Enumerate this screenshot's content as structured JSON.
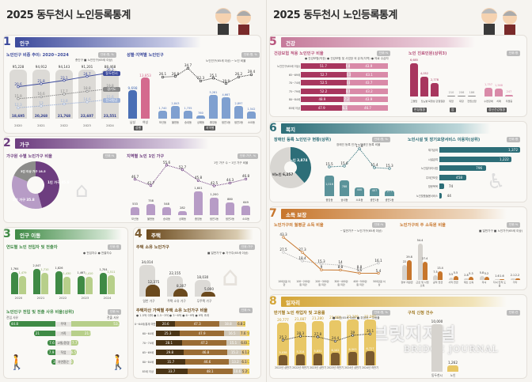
{
  "title": "2025 동두천시 노인등록통계",
  "sections": {
    "s1": {
      "num": "1",
      "label": "인구",
      "color": "#3c4a9c"
    },
    "s2": {
      "num": "2",
      "label": "가구",
      "color": "#6d3d7f"
    },
    "s3": {
      "num": "3",
      "label": "인구 이동",
      "color": "#3f8a45"
    },
    "s4": {
      "num": "4",
      "label": "주택",
      "color": "#7a5a2e"
    },
    "s5": {
      "num": "5",
      "label": "건강",
      "color": "#b8567e"
    },
    "s6": {
      "num": "6",
      "label": "복지",
      "color": "#2d6e78"
    },
    "s7": {
      "num": "7",
      "label": "소득 보장",
      "color": "#c7762c"
    },
    "s8": {
      "num": "8",
      "label": "일자리",
      "color": "#d4a537"
    }
  },
  "watermark": {
    "ko": "브릿지저널",
    "en": "BRIDGE JOURNAL"
  },
  "chart_data": [
    {
      "id": "pop_trend",
      "type": "bar",
      "title": "노인인구 비중 추이: 2020~2024",
      "badge": "단위:명, %",
      "categories": [
        "2020",
        "2021",
        "2022",
        "2023",
        "2024"
      ],
      "series": [
        {
          "name": "총인구",
          "values": [
            95228,
            94912,
            94143,
            91201,
            88468
          ]
        },
        {
          "name": "노인인구(65세 이상)",
          "values": [
            18695,
            20268,
            21768,
            22607,
            23551
          ]
        }
      ],
      "lines": [
        {
          "name": "동두천시",
          "values": [
            20.6,
            21.8,
            23.1,
            24.7,
            26.2
          ]
        },
        {
          "name": "경기도",
          "values": [
            15.9,
            16.6,
            17.7,
            18.8,
            19.8
          ]
        },
        {
          "name": "전국평균",
          "values": [
            12.3,
            13.0,
            13.8,
            14.6,
            15.6
          ]
        }
      ],
      "legend": [
        "총인구",
        "노인인구(65세 이상)"
      ],
      "tags": [
        "동두천시",
        "경기도",
        "전국평균"
      ]
    },
    {
      "id": "pop_gender_region",
      "type": "bar",
      "title": "성별·지역별 노인인구",
      "badge": "단위:명, %",
      "gender": {
        "categories": [
          "남성",
          "여성"
        ],
        "values": [
          9698,
          13853
        ],
        "tag": "성별"
      },
      "region": {
        "categories": [
          "보산동",
          "불현동",
          "송내동",
          "상패동",
          "중앙동",
          "생연1동",
          "생연2동",
          "소요동"
        ],
        "values": [
          1740,
          2843,
          1735,
          760,
          5281,
          4667,
          2897,
          1542
        ],
        "line": [
          26.1,
          26.8,
          34.7,
          22.3,
          25.1,
          19.9,
          26.2,
          28.4
        ],
        "tag": "지역별"
      },
      "legend": [
        "노인인구(65세 이상)",
        "노인 비율"
      ]
    },
    {
      "id": "household_pie",
      "type": "pie",
      "title": "가구원 수별 노인가구 비율",
      "badge": "단위:%",
      "categories": [
        "1인 가구",
        "2인 가구",
        "3인 이상 가구"
      ],
      "values": [
        45.8,
        35.8,
        18.5
      ]
    },
    {
      "id": "single_household",
      "type": "bar",
      "title": "지역별 노인 1인 가구",
      "badge": "단위:가구, %",
      "categories": [
        "보산동",
        "불현동",
        "송내동",
        "상패동",
        "중앙동",
        "생연1동",
        "생연2동",
        "소요동"
      ],
      "values": [
        533,
        758,
        548,
        282,
        1601,
        1200,
        880,
        649
      ],
      "line": [
        46.7,
        42.7,
        55.6,
        52.7,
        45.8,
        42.5,
        44.3,
        46.8
      ],
      "legend": [
        "1인 가구 수",
        "1인 가구 비율"
      ]
    },
    {
      "id": "migration",
      "type": "bar",
      "title": "연도별 노인 전입자 및 전출자",
      "badge": "단위:명",
      "categories": [
        "2020",
        "2021",
        "2022",
        "2023",
        "2024"
      ],
      "series": [
        {
          "name": "전입자수",
          "values": [
            1764,
            2047,
            1826,
            1467,
            1704
          ]
        },
        {
          "name": "전출자수",
          "values": [
            1479,
            1710,
            1430,
            1410,
            1511
          ]
        }
      ]
    },
    {
      "id": "migration_reason",
      "type": "bar",
      "title": "노인인구 전입 및 전출 사유 비율(상위)",
      "badge": "단위:%",
      "left_label": "전입 사유",
      "right_label": "전출 사유",
      "categories": [
        "주택",
        "가족",
        "교통/환경",
        "직업",
        "자연환경"
      ],
      "in_values": [
        44.8,
        21.0,
        7.6,
        7.9,
        3.8
      ],
      "out_values": [
        53.3,
        21.6,
        7.7,
        6.5,
        2.6
      ]
    },
    {
      "id": "house_owner",
      "type": "bar",
      "title": "주택 소유 노인가구",
      "badge": "단위:가구",
      "categories": [
        "일반 가구",
        "주택 소유 가구",
        "무주택 가구"
      ],
      "series": [
        {
          "name": "일반가구",
          "values": [
            34014,
            22155,
            18030
          ]
        },
        {
          "name": "가구주(65세 이상)",
          "values": [
            12375,
            8307,
            5000
          ]
        }
      ]
    },
    {
      "id": "house_value",
      "type": "bar",
      "title": "주택자산 가액별 주택 소유 노인가구 비율",
      "badge": "단위:%",
      "legend": [
        "1.5억 이하",
        "1.5~3억",
        "3~6억",
        "6~9억",
        "9억 초과"
      ],
      "categories": [
        "0~64세(통계 미만)",
        "60~64세",
        "70~74세",
        "65~69세",
        "80~84세",
        "85세 이상"
      ],
      "rows": [
        [
          20.6,
          47.3,
          18.8,
          6.8,
          2.0
        ],
        [
          25.3,
          47.9,
          16.5,
          7.6,
          2.8
        ],
        [
          28.1,
          47.2,
          15.1,
          6.6,
          2.7
        ],
        [
          29.8,
          46.8,
          15.2,
          6.1,
          2.0
        ],
        [
          31.7,
          46.6,
          13.2,
          6.1,
          2.3
        ],
        [
          33.7,
          48.1,
          10.6,
          5.2,
          2.2
        ]
      ]
    },
    {
      "id": "health_insurance",
      "type": "bar",
      "title": "건강보험 적용 노인인구 비율",
      "badge": "단위:%",
      "legend": [
        "건강보험(직장)",
        "건강보험 및 사업장 외 유지(지역)",
        "의료 수급자"
      ],
      "categories": [
        "노인인구(65세 이상)",
        "65~69세",
        "70~74세",
        "75~79세",
        "80~84세",
        "85세 이상"
      ],
      "rows": [
        [
          51.7,
          4.4,
          43.9
        ],
        [
          52.7,
          4.3,
          43.1
        ],
        [
          52.5,
          3.8,
          43.7
        ],
        [
          52.2,
          4.6,
          43.2
        ],
        [
          48.9,
          7.2,
          43.9
        ],
        [
          47.9,
          6.1,
          46.7
        ]
      ]
    },
    {
      "id": "disease",
      "type": "bar",
      "title": "노인 진료인원(상위3)",
      "badge": "단위:명",
      "groups": [
        {
          "tag": "만성질환",
          "categories": [
            "고혈압",
            "당뇨병",
            "퇴행성 관절질환"
          ],
          "values": [
            6685,
            4052,
            2778
          ]
        },
        {
          "tag": "암",
          "categories": [
            "위암",
            "대장",
            "전립선암"
          ],
          "values": [
            210,
            206,
            186
          ]
        },
        {
          "tag": "정신건강질환",
          "categories": [
            "수면장애",
            "치매",
            "우울증"
          ],
          "values": [
            1757,
            1568,
            247
          ]
        }
      ]
    },
    {
      "id": "disabled",
      "type": "pie",
      "title": "장애인 등록 노인인구 현황(상위)",
      "badge": "단위:명, %",
      "categories": [
        "노인",
        "비노인"
      ],
      "values": [
        3874,
        6257
      ],
      "legend": [
        "장애인 등록 인구",
        "장애인 등록 비율"
      ],
      "region": {
        "categories": [
          "중앙동",
          "송내동",
          "소요동",
          "생연1동",
          "생연2동"
        ],
        "values": [
          1016,
          788,
          440,
          407,
          277
        ],
        "line": [
          15.5,
          15.6,
          17.8,
          15.4,
          15.3
        ]
      }
    },
    {
      "id": "welfare_service",
      "type": "bar",
      "title": "노인시설 및 장기요양서비스 이용자(상위)",
      "badge": "단위:명",
      "categories": [
        "재가급여",
        "시설급여",
        "노인일자리사업",
        "주야간보호",
        "방문목욕",
        "노인맞춤돌봄서비스"
      ],
      "values": [
        1372,
        1222,
        796,
        458,
        74,
        44
      ]
    },
    {
      "id": "income_ratio",
      "type": "line",
      "title": "노인가구의 월평균 소득 비율",
      "badge": "단위:%",
      "categories": [
        "100만원 미만",
        "100~200만원 미만",
        "200~300만원 미만",
        "300~400만원 미만",
        "400~500만원 미만",
        "500만원 이상"
      ],
      "series": [
        {
          "name": "일반가구",
          "values": [
            27.5,
            18.4,
            15.3,
            14.0,
            8.8,
            16.1
          ]
        },
        {
          "name": "노인가구(65세 이상)",
          "values": [
            43.3,
            27.3,
            9.0,
            8.8,
            5.5,
            5.4
          ]
        }
      ]
    },
    {
      "id": "income_source",
      "type": "bar",
      "title": "노인가구의 주 소득원 비율",
      "badge": "단위:%",
      "categories": [
        "정부 지원금",
        "근로 및 사업 소득",
        "공적 연금",
        "사적 연금",
        "재산 소득",
        "자녀",
        "자녀·친척 도움",
        "기타"
      ],
      "series": [
        {
          "name": "일반가구",
          "values": [
            22.0,
            54.4,
            7.5,
            3.5,
            2.8,
            5.8,
            1.6,
            2.1
          ]
        },
        {
          "name": "노인가구(65세 이상)",
          "values": [
            29.8,
            27.4,
            13.4,
            5.5,
            5.3,
            5.2,
            1.6,
            2.2
          ]
        }
      ]
    },
    {
      "id": "employment",
      "type": "bar",
      "title": "반기별 노인 취업자 및 고용률",
      "badge": "단위:명, %",
      "categories": [
        "2022년 상반기",
        "2022년 하반기",
        "2023년 상반기",
        "2023년 하반기",
        "2024년 상반기",
        "2024년 하반기"
      ],
      "series": [
        {
          "name": "노인(65세 이상)",
          "values": [
            20777,
            21087,
            21280,
            21660,
            22209,
            22097
          ]
        },
        {
          "name": "취업자",
          "values": [
            5038,
            5314,
            5831,
            6102,
            6503,
            6727
          ]
        }
      ],
      "line": {
        "name": "고용률",
        "values": [
          25.2,
          28.3,
          27.8,
          24.4,
          29.0,
          30.1
        ]
      }
    },
    {
      "id": "job_search",
      "type": "bar",
      "title": "구직 신청 건수",
      "badge": "단위:건",
      "categories": [
        "동두천시",
        "노인"
      ],
      "values": [
        10000,
        1262
      ]
    }
  ]
}
